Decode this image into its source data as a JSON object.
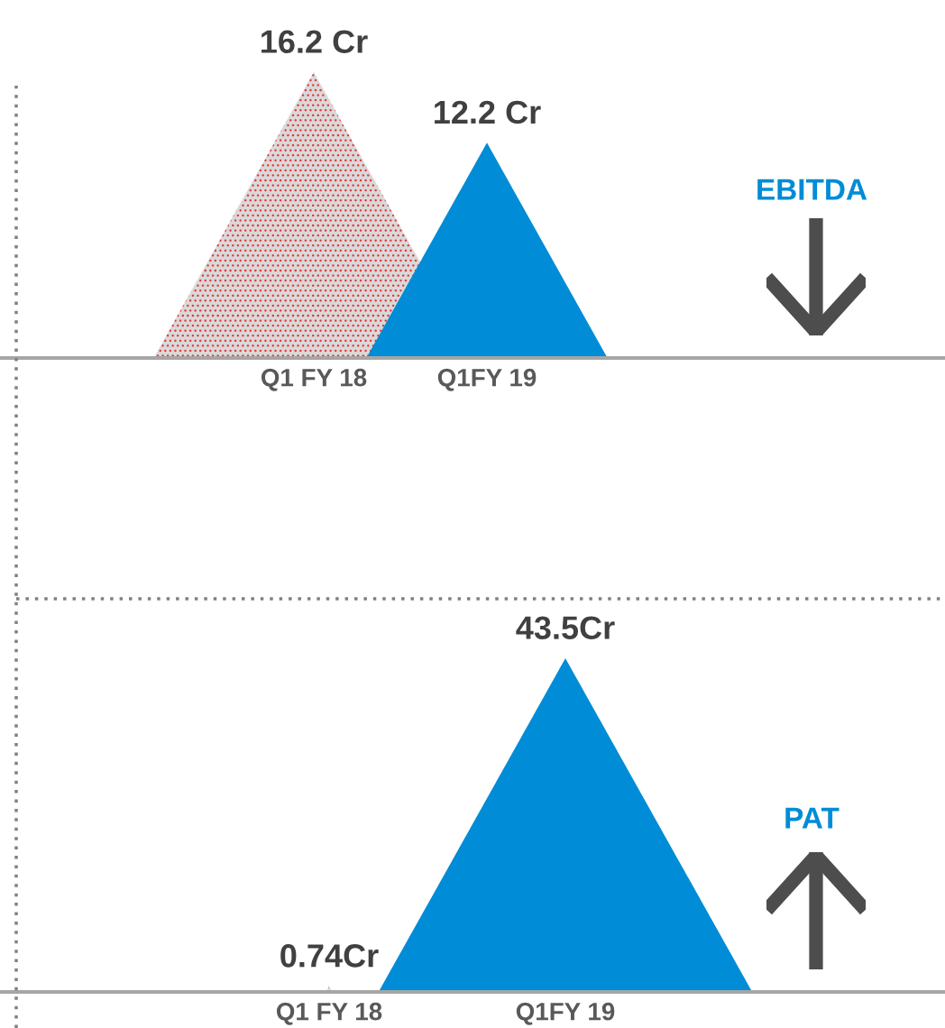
{
  "chart_data": [
    {
      "type": "other",
      "title": "EBITDA",
      "categories": [
        "Q1 FY 18",
        "Q1FY 19"
      ],
      "values": [
        16.2,
        12.2
      ],
      "colors": [
        "#d9d9d9",
        "#008cd6"
      ],
      "value_labels": [
        "16.2 Cr",
        "12.2 Cr"
      ]
    },
    {
      "type": "other",
      "title": "PAT",
      "categories": [
        "Q1 FY 18",
        "Q1FY 19"
      ],
      "values": [
        0.74,
        43.5
      ],
      "colors": [
        "#d9d9d9",
        "#008cd6"
      ],
      "value_labels": [
        "0.74Cr",
        "43.5Cr"
      ]
    }
  ]
}
